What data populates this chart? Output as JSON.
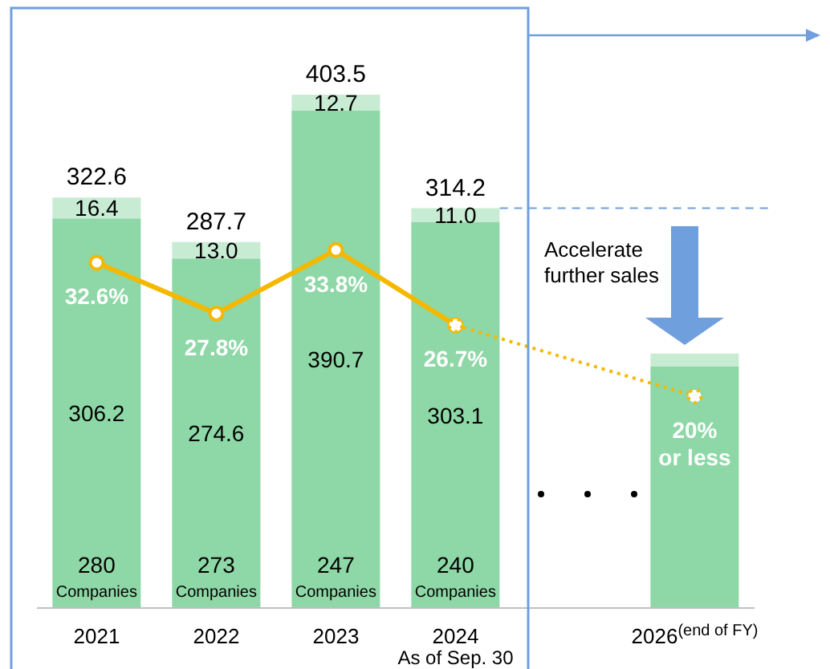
{
  "chart_data": {
    "type": "bar",
    "stacked": true,
    "categories": [
      "2021",
      "2022",
      "2023",
      "2024\nAs of Sep. 30",
      null,
      "2026$^{(end of FY)}$"
    ],
    "series": [
      {
        "color": "#8ed7a6",
        "values": [
          306.2,
          274.6,
          390.7,
          303.1,
          null,
          190
        ],
        "value_labels": [
          "306.2",
          "274.6",
          "390.7",
          "303.1",
          null,
          null
        ]
      },
      {
        "color": "#c7ecd3",
        "values": [
          16.4,
          13.0,
          12.7,
          11.0,
          null,
          10
        ],
        "value_labels": [
          "16.4",
          "13.0",
          "12.7",
          "11.0",
          null,
          null
        ]
      },
      {
        "type": "line",
        "axis": "y2",
        "color": "#f5b800",
        "marker": "circle",
        "line_style": "solid",
        "values": [
          32.6,
          27.8,
          33.8,
          26.7,
          null,
          null
        ],
        "value_labels": [
          "32.6%",
          "27.8%",
          "33.8%",
          "26.7%",
          null,
          null
        ]
      },
      {
        "type": "line",
        "axis": "y2",
        "color": "#f5b800",
        "marker": "circle",
        "line_style": "dotted",
        "values": [
          null,
          null,
          null,
          26.7,
          null,
          20
        ],
        "value_labels": [
          null,
          null,
          null,
          null,
          null,
          "20%\nor less"
        ]
      }
    ],
    "totals": [
      "322.6",
      "287.7",
      "403.5",
      "314.2",
      null,
      null
    ],
    "ref_lines": [
      {
        "axis": "y",
        "value": 314.2,
        "color": "#6f9fdc",
        "line_style": "dashed"
      }
    ],
    "annotations": [
      "280\nCompanies",
      "273\nCompanies",
      "247\nCompanies",
      "240\nCompanies",
      "Accelerate\nfurther sales"
    ]
  }
}
